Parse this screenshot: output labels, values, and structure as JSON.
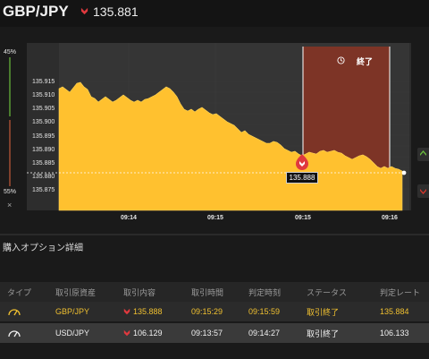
{
  "header": {
    "pair": "GBP/JPY",
    "rate": "135.881",
    "direction_icon": "down-arrow-icon"
  },
  "chart": {
    "left_top_label": "45%",
    "left_bottom_label": "55%",
    "close_label": "×",
    "y_ticks": [
      "135.915",
      "135.910",
      "135.905",
      "135.900",
      "135.895",
      "135.890",
      "135.885",
      "135.880",
      "135.875"
    ],
    "x_ticks": [
      "09:14",
      "09:15",
      "09:15",
      "09:16"
    ],
    "expiry_label": "終了",
    "current_price_label": "135.888",
    "colors": {
      "area": "#ffc12f",
      "expiry_zone": "#7d3426",
      "expiry_line": "#ffffff",
      "green": "#6bbf3c",
      "red": "#d9362b"
    }
  },
  "section": {
    "title": "購入オプション詳細"
  },
  "table": {
    "headers": [
      "タイプ",
      "取引原資産",
      "取引内容",
      "取引時間",
      "判定時刻",
      "ステータス",
      "判定レート"
    ],
    "rows": [
      {
        "asset": "GBP/JPY",
        "content": "135.888",
        "time": "09:15:29",
        "judge_time": "09:15:59",
        "status": "取引終了",
        "rate": "135.884",
        "direction_icon": "down-arrow-icon",
        "type_icon": "gauge-icon"
      },
      {
        "asset": "USD/JPY",
        "content": "106.129",
        "time": "09:13:57",
        "judge_time": "09:14:27",
        "status": "取引終了",
        "rate": "106.133",
        "direction_icon": "down-arrow-icon",
        "type_icon": "gauge-icon"
      }
    ]
  }
}
